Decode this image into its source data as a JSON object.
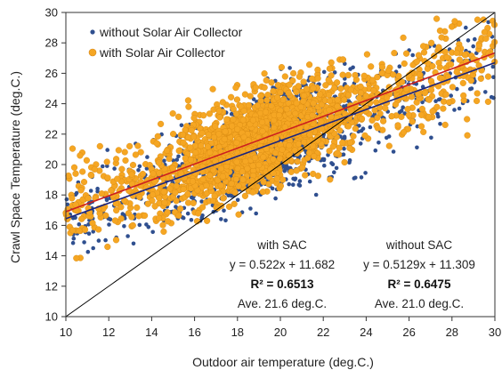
{
  "chart_data": {
    "type": "scatter",
    "xlabel": "Outdoor air temperature (deg.C.)",
    "ylabel": "Crawl Space Temperature (deg.C.)",
    "xlim": [
      10,
      30
    ],
    "ylim": [
      10,
      30
    ],
    "xticks": [
      "10",
      "12",
      "14",
      "16",
      "18",
      "20",
      "22",
      "24",
      "26",
      "28",
      "30"
    ],
    "yticks": [
      "10",
      "12",
      "14",
      "16",
      "18",
      "20",
      "22",
      "24",
      "26",
      "28",
      "30"
    ],
    "legend_position": "top-left",
    "series": [
      {
        "name": "without Solar Air Collector",
        "color": "#2f4f8f",
        "trend": {
          "slope": 0.5129,
          "intercept": 11.309,
          "color": "#1a237e"
        }
      },
      {
        "name": "with Solar Air Collector",
        "color": "#f5a623",
        "trend": {
          "slope": 0.522,
          "intercept": 11.682,
          "color": "#cc1f1f"
        }
      }
    ],
    "reference_line": {
      "slope": 1,
      "intercept": 0,
      "color": "#000000"
    },
    "point_cloud": {
      "x_min": 10.0,
      "x_max": 30.0,
      "with_sac_spread": 1.6,
      "without_sac_spread": 1.7
    },
    "annotations": {
      "with": {
        "title": "with SAC",
        "equation": "y = 0.522x + 11.682",
        "r2": "R² = 0.6513",
        "ave": "Ave. 21.6 deg.C."
      },
      "without": {
        "title": "without SAC",
        "equation": "y = 0.5129x + 11.309",
        "r2": "R² = 0.6475",
        "ave": "Ave. 21.0 deg.C."
      }
    }
  }
}
